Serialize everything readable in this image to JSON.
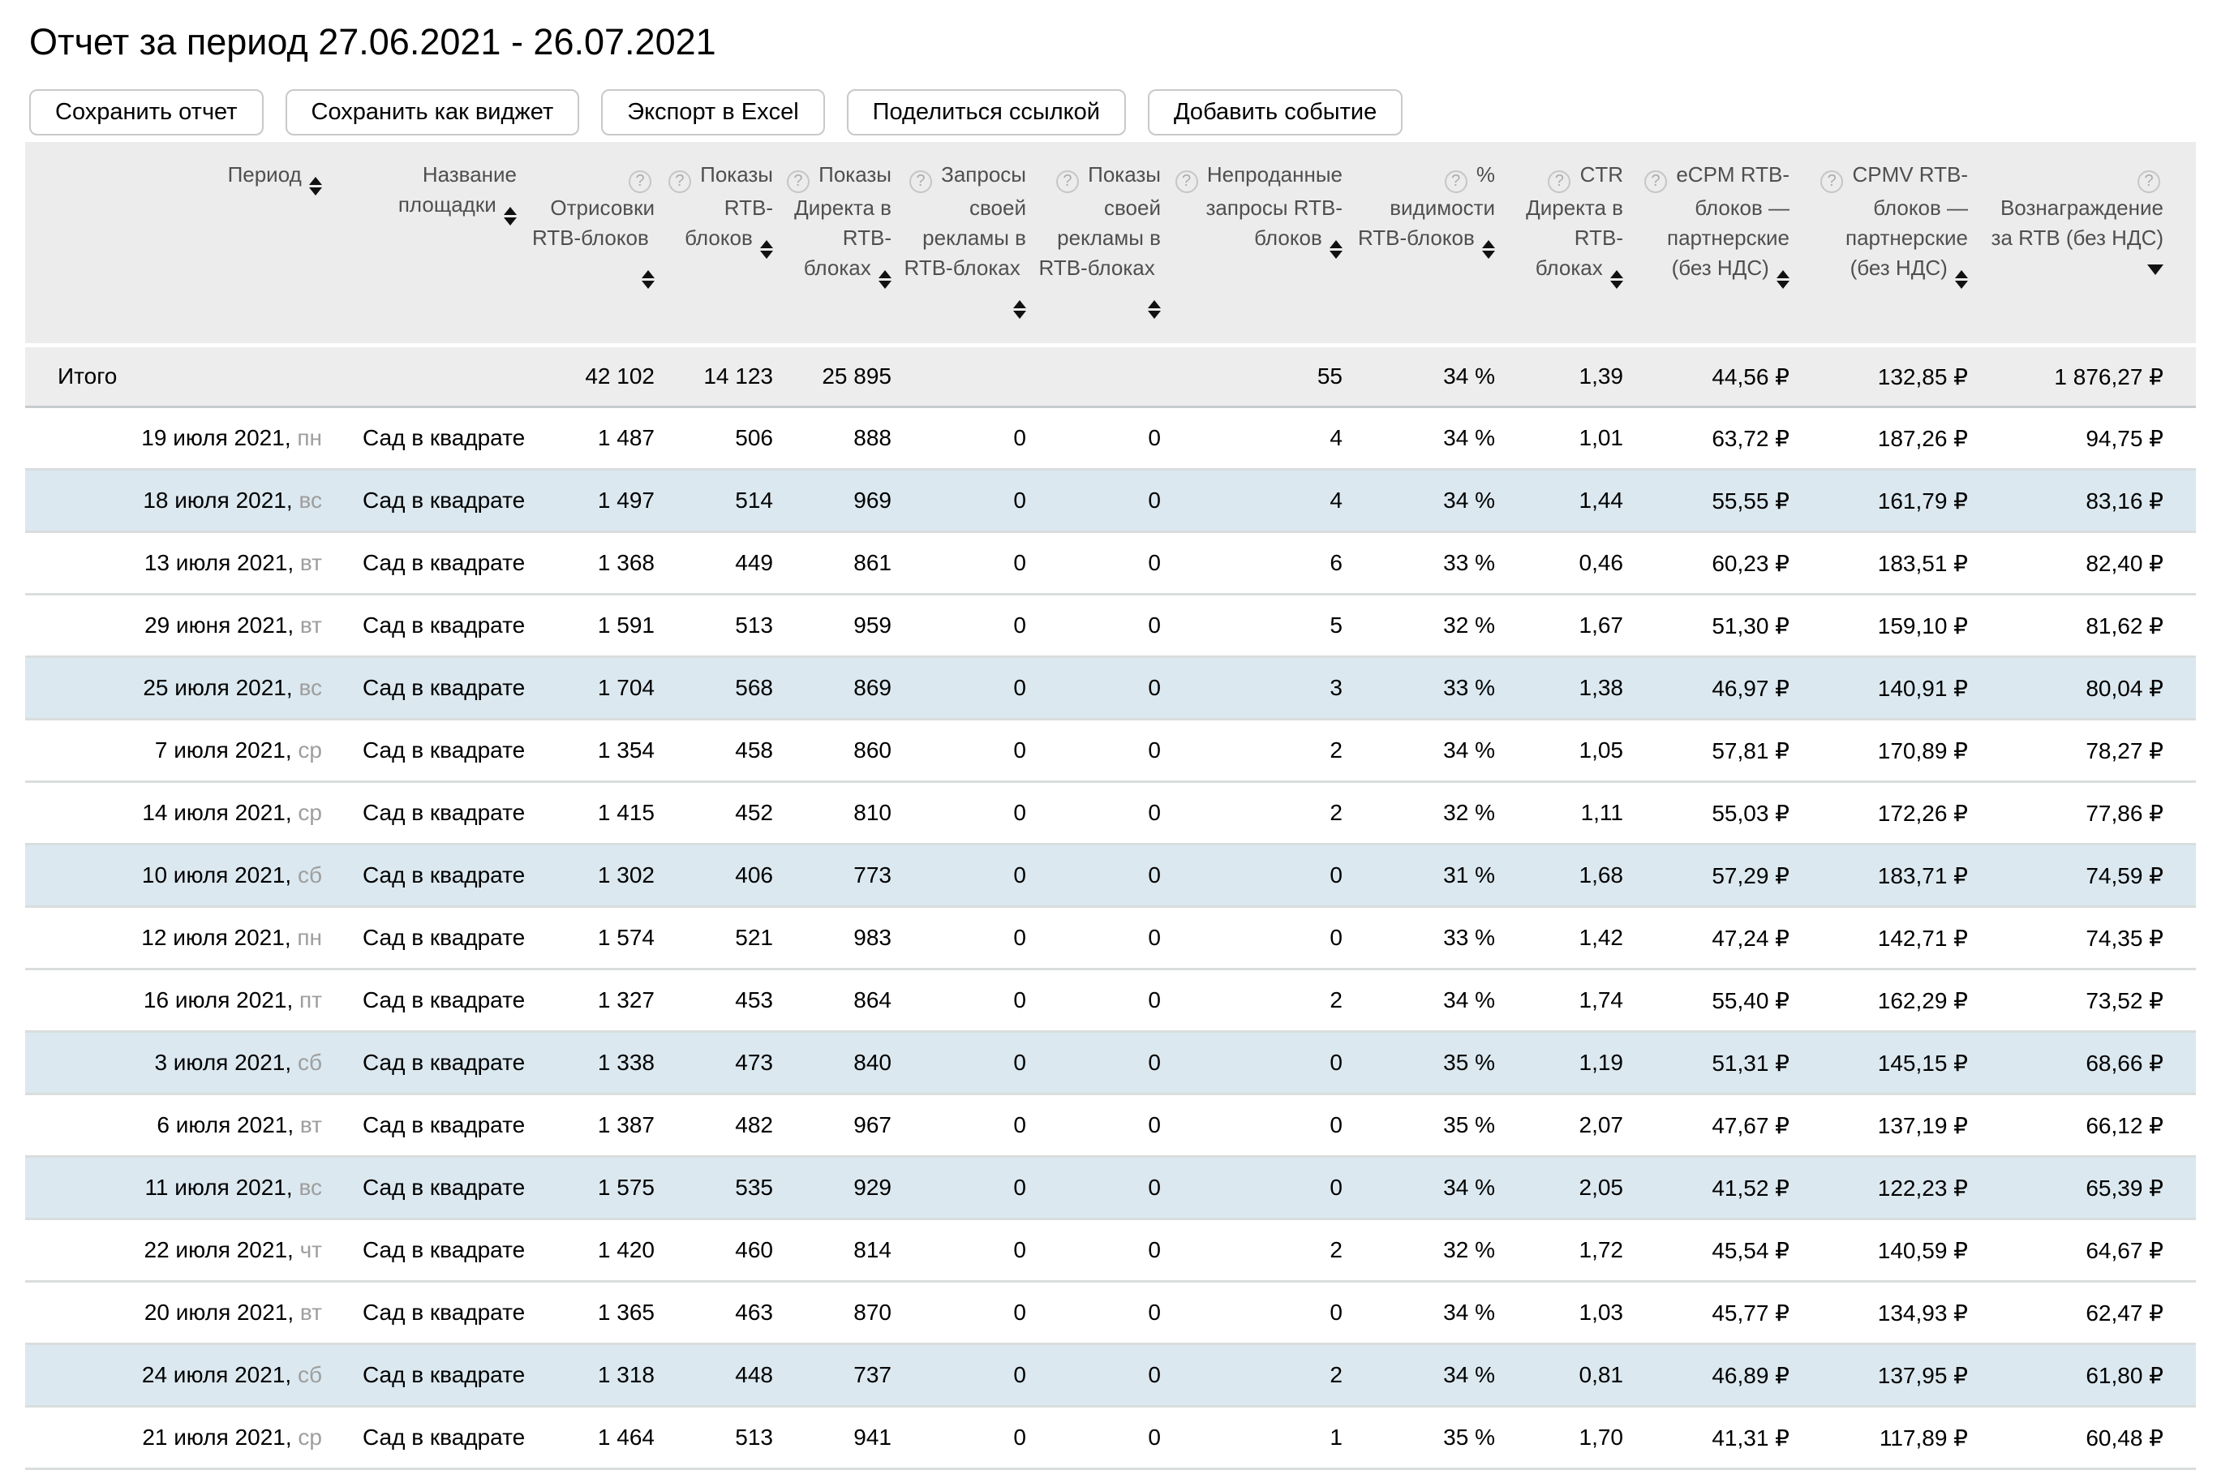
{
  "title": "Отчет за период 27.06.2021 - 26.07.2021",
  "toolbar": {
    "buttons": [
      "Сохранить отчет",
      "Сохранить как виджет",
      "Экспорт в Excel",
      "Поделиться ссылкой",
      "Добавить событие"
    ]
  },
  "icons": {
    "help": "?",
    "sort_both": "up-down-triangles",
    "sort_desc": "down-triangle"
  },
  "colors": {
    "header_bg": "#ececec",
    "totals_bg": "#ededed",
    "weekend_row_bg": "#dbe8ef",
    "row_border": "#d9dddd",
    "weekday_text": "#9e9e9e",
    "header_text": "#4f4f4f"
  },
  "table": {
    "columns": [
      {
        "key": "period",
        "label": "Период",
        "help": false,
        "sort": "both"
      },
      {
        "key": "site_name",
        "label": "Название площадки",
        "help": false,
        "sort": "both"
      },
      {
        "key": "rtb_renders",
        "label": "Отрисовки RTB-блоков",
        "help": true,
        "sort": "both"
      },
      {
        "key": "rtb_shows",
        "label": "Показы RTB-блоков",
        "help": true,
        "sort": "both"
      },
      {
        "key": "direct_shows_in_rtb",
        "label": "Показы Директа в RTB-блоках",
        "help": true,
        "sort": "both"
      },
      {
        "key": "own_ad_requests",
        "label": "Запросы своей рекламы в RTB-блоках",
        "help": true,
        "sort": "both"
      },
      {
        "key": "own_ad_shows",
        "label": "Показы своей рекламы в RTB-блоках",
        "help": true,
        "sort": "both"
      },
      {
        "key": "unsold_requests",
        "label": "Непроданные запросы RTB-блоков",
        "help": true,
        "sort": "both"
      },
      {
        "key": "visibility_pct",
        "label": "% видимости RTB-блоков",
        "help": true,
        "sort": "both"
      },
      {
        "key": "direct_ctr",
        "label": "CTR Директа в RTB-блоках",
        "help": true,
        "sort": "both"
      },
      {
        "key": "ecpm",
        "label": "eCPM RTB-блоков — партнерские (без НДС)",
        "help": true,
        "sort": "both"
      },
      {
        "key": "cpmv",
        "label": "CPMV RTB-блоков — партнерские (без НДС)",
        "help": true,
        "sort": "both"
      },
      {
        "key": "rtb_reward",
        "label": "Вознаграждение за RTB (без НДС)",
        "help": true,
        "sort": "desc"
      }
    ],
    "totals": {
      "label": "Итого",
      "values": [
        "42 102",
        "14 123",
        "25 895",
        "",
        "",
        "55",
        "34 %",
        "1,39",
        "44,56 ₽",
        "132,85 ₽",
        "1 876,27 ₽"
      ]
    },
    "rows": [
      {
        "date": "19 июля 2021,",
        "weekday": "пн",
        "site": "Сад в квадрате",
        "weekend": false,
        "values": [
          "1 487",
          "506",
          "888",
          "0",
          "0",
          "4",
          "34 %",
          "1,01",
          "63,72 ₽",
          "187,26 ₽",
          "94,75 ₽"
        ]
      },
      {
        "date": "18 июля 2021,",
        "weekday": "вс",
        "site": "Сад в квадрате",
        "weekend": true,
        "values": [
          "1 497",
          "514",
          "969",
          "0",
          "0",
          "4",
          "34 %",
          "1,44",
          "55,55 ₽",
          "161,79 ₽",
          "83,16 ₽"
        ]
      },
      {
        "date": "13 июля 2021,",
        "weekday": "вт",
        "site": "Сад в квадрате",
        "weekend": false,
        "values": [
          "1 368",
          "449",
          "861",
          "0",
          "0",
          "6",
          "33 %",
          "0,46",
          "60,23 ₽",
          "183,51 ₽",
          "82,40 ₽"
        ]
      },
      {
        "date": "29 июня 2021,",
        "weekday": "вт",
        "site": "Сад в квадрате",
        "weekend": false,
        "values": [
          "1 591",
          "513",
          "959",
          "0",
          "0",
          "5",
          "32 %",
          "1,67",
          "51,30 ₽",
          "159,10 ₽",
          "81,62 ₽"
        ]
      },
      {
        "date": "25 июля 2021,",
        "weekday": "вс",
        "site": "Сад в квадрате",
        "weekend": true,
        "values": [
          "1 704",
          "568",
          "869",
          "0",
          "0",
          "3",
          "33 %",
          "1,38",
          "46,97 ₽",
          "140,91 ₽",
          "80,04 ₽"
        ]
      },
      {
        "date": "7 июля 2021,",
        "weekday": "ср",
        "site": "Сад в квадрате",
        "weekend": false,
        "values": [
          "1 354",
          "458",
          "860",
          "0",
          "0",
          "2",
          "34 %",
          "1,05",
          "57,81 ₽",
          "170,89 ₽",
          "78,27 ₽"
        ]
      },
      {
        "date": "14 июля 2021,",
        "weekday": "ср",
        "site": "Сад в квадрате",
        "weekend": false,
        "values": [
          "1 415",
          "452",
          "810",
          "0",
          "0",
          "2",
          "32 %",
          "1,11",
          "55,03 ₽",
          "172,26 ₽",
          "77,86 ₽"
        ]
      },
      {
        "date": "10 июля 2021,",
        "weekday": "сб",
        "site": "Сад в квадрате",
        "weekend": true,
        "values": [
          "1 302",
          "406",
          "773",
          "0",
          "0",
          "0",
          "31 %",
          "1,68",
          "57,29 ₽",
          "183,71 ₽",
          "74,59 ₽"
        ]
      },
      {
        "date": "12 июля 2021,",
        "weekday": "пн",
        "site": "Сад в квадрате",
        "weekend": false,
        "values": [
          "1 574",
          "521",
          "983",
          "0",
          "0",
          "0",
          "33 %",
          "1,42",
          "47,24 ₽",
          "142,71 ₽",
          "74,35 ₽"
        ]
      },
      {
        "date": "16 июля 2021,",
        "weekday": "пт",
        "site": "Сад в квадрате",
        "weekend": false,
        "values": [
          "1 327",
          "453",
          "864",
          "0",
          "0",
          "2",
          "34 %",
          "1,74",
          "55,40 ₽",
          "162,29 ₽",
          "73,52 ₽"
        ]
      },
      {
        "date": "3 июля 2021,",
        "weekday": "сб",
        "site": "Сад в квадрате",
        "weekend": true,
        "values": [
          "1 338",
          "473",
          "840",
          "0",
          "0",
          "0",
          "35 %",
          "1,19",
          "51,31 ₽",
          "145,15 ₽",
          "68,66 ₽"
        ]
      },
      {
        "date": "6 июля 2021,",
        "weekday": "вт",
        "site": "Сад в квадрате",
        "weekend": false,
        "values": [
          "1 387",
          "482",
          "967",
          "0",
          "0",
          "0",
          "35 %",
          "2,07",
          "47,67 ₽",
          "137,19 ₽",
          "66,12 ₽"
        ]
      },
      {
        "date": "11 июля 2021,",
        "weekday": "вс",
        "site": "Сад в квадрате",
        "weekend": true,
        "values": [
          "1 575",
          "535",
          "929",
          "0",
          "0",
          "0",
          "34 %",
          "2,05",
          "41,52 ₽",
          "122,23 ₽",
          "65,39 ₽"
        ]
      },
      {
        "date": "22 июля 2021,",
        "weekday": "чт",
        "site": "Сад в квадрате",
        "weekend": false,
        "values": [
          "1 420",
          "460",
          "814",
          "0",
          "0",
          "2",
          "32 %",
          "1,72",
          "45,54 ₽",
          "140,59 ₽",
          "64,67 ₽"
        ]
      },
      {
        "date": "20 июля 2021,",
        "weekday": "вт",
        "site": "Сад в квадрате",
        "weekend": false,
        "values": [
          "1 365",
          "463",
          "870",
          "0",
          "0",
          "0",
          "34 %",
          "1,03",
          "45,77 ₽",
          "134,93 ₽",
          "62,47 ₽"
        ]
      },
      {
        "date": "24 июля 2021,",
        "weekday": "сб",
        "site": "Сад в квадрате",
        "weekend": true,
        "values": [
          "1 318",
          "448",
          "737",
          "0",
          "0",
          "2",
          "34 %",
          "0,81",
          "46,89 ₽",
          "137,95 ₽",
          "61,80 ₽"
        ]
      },
      {
        "date": "21 июля 2021,",
        "weekday": "ср",
        "site": "Сад в квадрате",
        "weekend": false,
        "values": [
          "1 464",
          "513",
          "941",
          "0",
          "0",
          "1",
          "35 %",
          "1,70",
          "41,31 ₽",
          "117,89 ₽",
          "60,48 ₽"
        ]
      }
    ]
  }
}
